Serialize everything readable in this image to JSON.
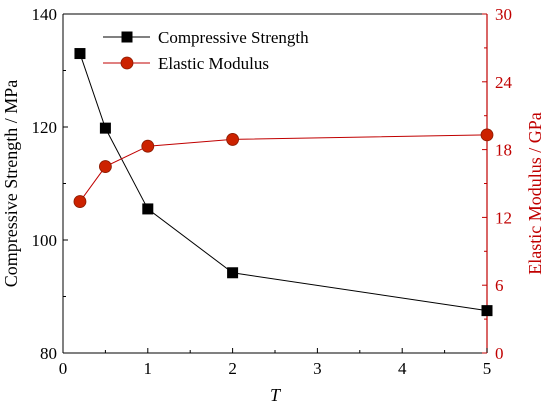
{
  "chart_data": {
    "type": "line",
    "x": [
      0.2,
      0.5,
      1,
      2,
      5
    ],
    "series": [
      {
        "name": "Compressive Strength",
        "axis": "left",
        "marker": "square",
        "color": "#000000",
        "values": [
          133,
          119.8,
          105.5,
          94.2,
          87.5
        ]
      },
      {
        "name": "Elastic Modulus",
        "axis": "right",
        "marker": "circle",
        "color": "#c00000",
        "marker_color": "#cc2200",
        "values": [
          13.4,
          16.5,
          18.3,
          18.9,
          19.3
        ]
      }
    ],
    "xlabel": "T",
    "ylabel_left": "Compressive Strength / MPa",
    "ylabel_right": "Elastic Modulus / GPa",
    "xlim": [
      0,
      5
    ],
    "ylim_left": [
      80,
      140
    ],
    "ylim_right": [
      0,
      30
    ],
    "xticks": [
      0,
      1,
      2,
      3,
      4,
      5
    ],
    "yticks_left": [
      80,
      100,
      120,
      140
    ],
    "yticks_right": [
      0,
      6,
      12,
      18,
      24,
      30
    ],
    "legend_position": "top-left",
    "grid": false
  }
}
